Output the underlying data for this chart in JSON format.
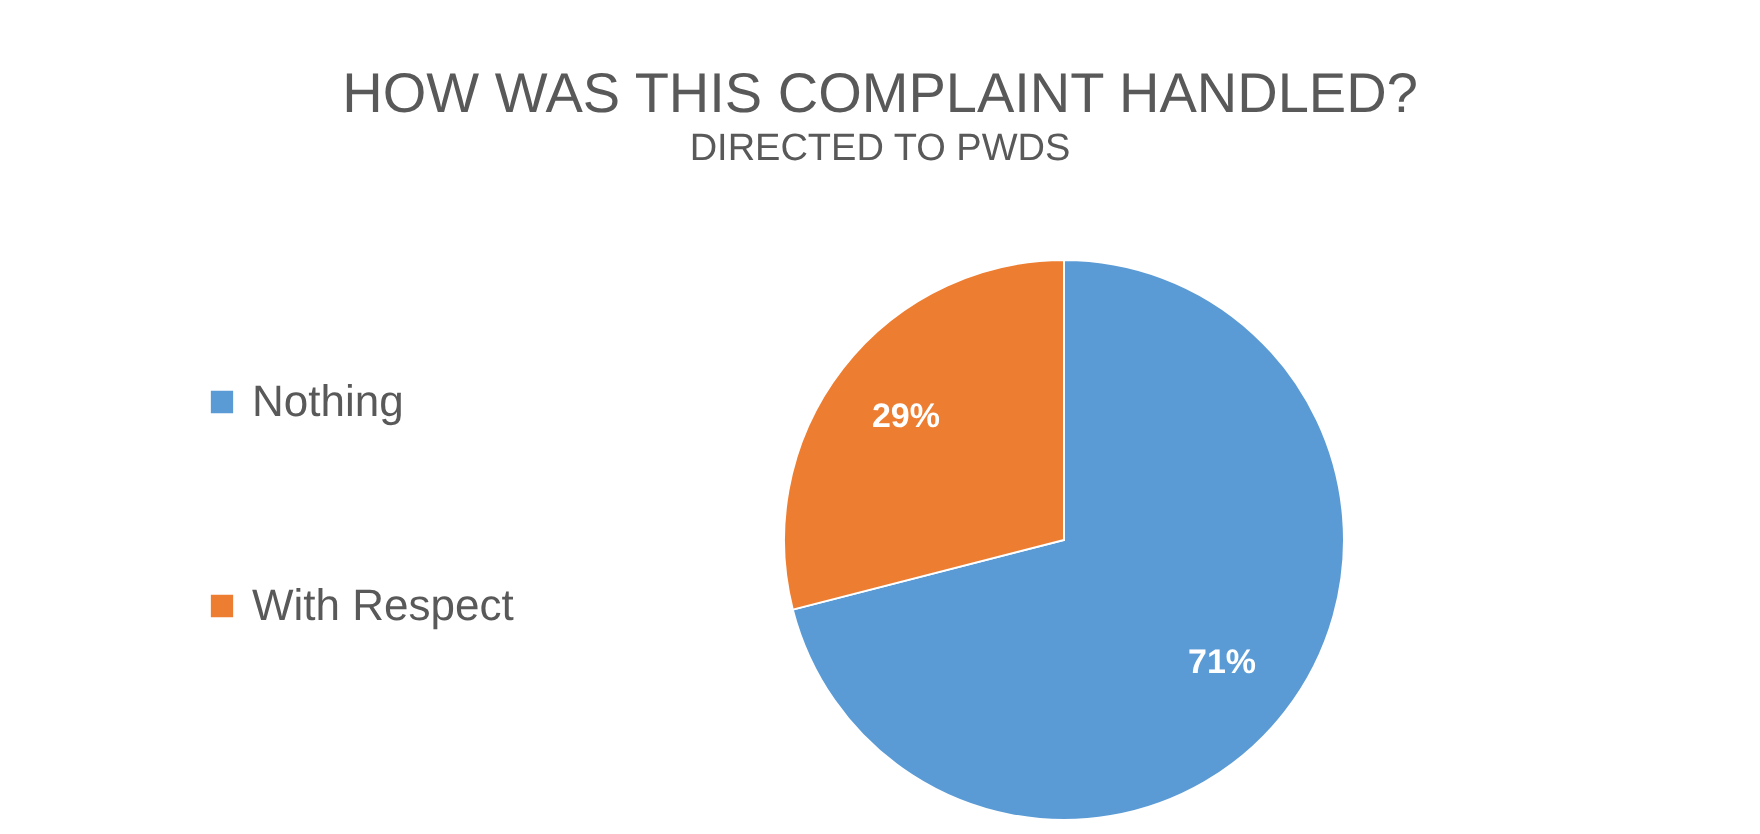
{
  "chart_data": {
    "type": "pie",
    "title": "HOW WAS THIS COMPLAINT HANDLED?",
    "subtitle": "DIRECTED TO PWDS",
    "categories": [
      "Nothing",
      "With Respect"
    ],
    "values": [
      71,
      29
    ],
    "colors": [
      "#5b9bd5",
      "#ed7d31"
    ],
    "value_labels": [
      "71%",
      "29%"
    ],
    "legend": "left"
  }
}
